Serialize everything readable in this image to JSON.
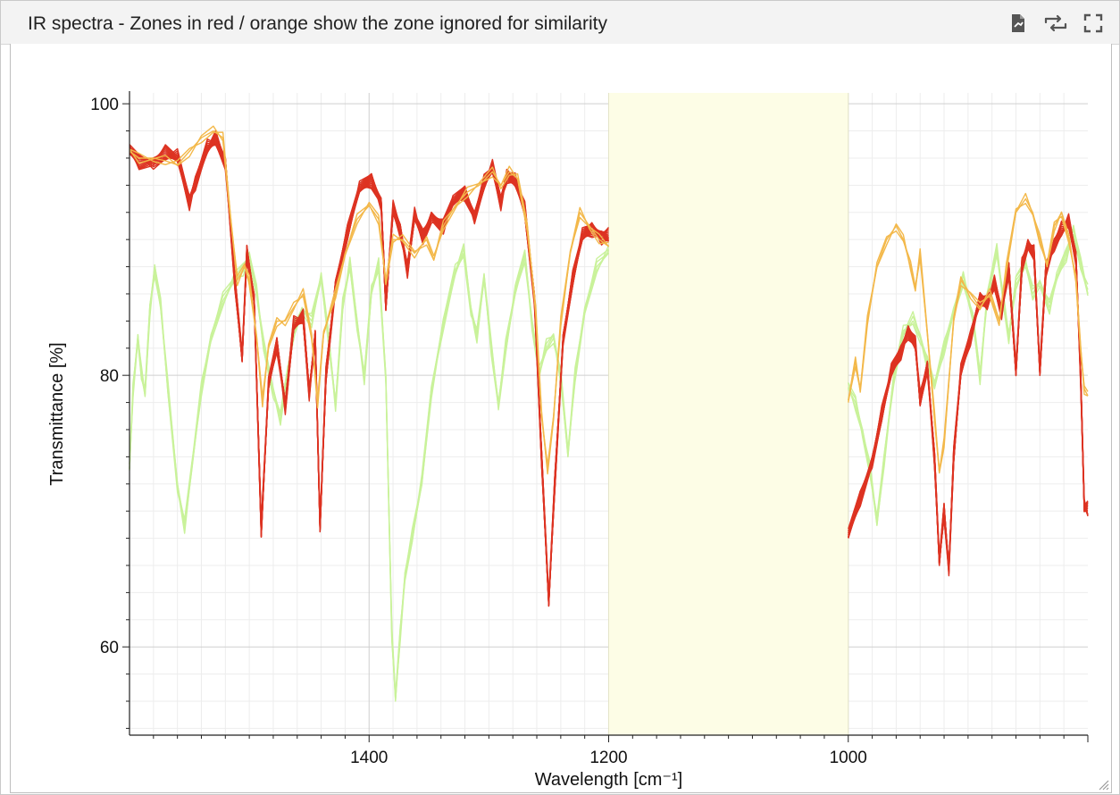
{
  "panel": {
    "title": "IR spectra - Zones in red / orange show the zone ignored for similarity",
    "buttons": [
      {
        "name": "export-icon"
      },
      {
        "name": "swap-icon"
      },
      {
        "name": "fullscreen-icon"
      }
    ]
  },
  "chart_data": {
    "type": "line",
    "title": "",
    "xlabel": "Wavelength [cm⁻¹]",
    "ylabel": "Transmittance [%]",
    "xlim": [
      1600,
      800
    ],
    "x_reversed": true,
    "ylim": [
      53.5,
      100.8
    ],
    "xticks": [
      1400,
      1200,
      1000
    ],
    "yticks": [
      100,
      80,
      60
    ],
    "grid": true,
    "ignored_zone": {
      "from": 1200,
      "to": 1000,
      "color": "#fdfde6"
    },
    "series": [
      {
        "color": "#dd3322",
        "count": 14,
        "spread": 0.9,
        "values": [
          [
            1600,
            96.3
          ],
          [
            1592,
            95.8
          ],
          [
            1580,
            96.0
          ],
          [
            1570,
            96.2
          ],
          [
            1560,
            95.8
          ],
          [
            1550,
            93.0
          ],
          [
            1545,
            94.5
          ],
          [
            1535,
            96.5
          ],
          [
            1528,
            97.2
          ],
          [
            1520,
            96.0
          ],
          [
            1512,
            87.0
          ],
          [
            1506,
            81.0
          ],
          [
            1502,
            89.0
          ],
          [
            1496,
            86.0
          ],
          [
            1490,
            68.5
          ],
          [
            1484,
            79.0
          ],
          [
            1477,
            82.5
          ],
          [
            1470,
            78.0
          ],
          [
            1463,
            83.5
          ],
          [
            1455,
            84.0
          ],
          [
            1450,
            79.0
          ],
          [
            1445,
            83.0
          ],
          [
            1441,
            68.5
          ],
          [
            1436,
            80.0
          ],
          [
            1428,
            87.0
          ],
          [
            1418,
            90.5
          ],
          [
            1408,
            93.5
          ],
          [
            1398,
            94.5
          ],
          [
            1390,
            93.0
          ],
          [
            1386,
            85.0
          ],
          [
            1380,
            92.0
          ],
          [
            1374,
            91.0
          ],
          [
            1368,
            88.0
          ],
          [
            1362,
            91.5
          ],
          [
            1355,
            90.0
          ],
          [
            1348,
            92.0
          ],
          [
            1338,
            91.0
          ],
          [
            1330,
            92.5
          ],
          [
            1320,
            93.5
          ],
          [
            1312,
            92.0
          ],
          [
            1304,
            94.0
          ],
          [
            1297,
            95.0
          ],
          [
            1290,
            93.0
          ],
          [
            1285,
            95.0
          ],
          [
            1278,
            94.0
          ],
          [
            1270,
            92.0
          ],
          [
            1262,
            86.0
          ],
          [
            1256,
            74.0
          ],
          [
            1250,
            63.0
          ],
          [
            1245,
            72.0
          ],
          [
            1238,
            83.0
          ],
          [
            1230,
            87.0
          ],
          [
            1222,
            90.0
          ],
          [
            1214,
            91.0
          ],
          [
            1206,
            90.5
          ],
          [
            1200,
            90.0
          ]
        ],
        "values_right": [
          [
            1000,
            68.0
          ],
          [
            990,
            71.0
          ],
          [
            980,
            74.0
          ],
          [
            972,
            77.0
          ],
          [
            964,
            80.0
          ],
          [
            956,
            82.0
          ],
          [
            950,
            83.5
          ],
          [
            944,
            82.0
          ],
          [
            940,
            78.0
          ],
          [
            934,
            81.0
          ],
          [
            928,
            74.0
          ],
          [
            924,
            66.0
          ],
          [
            920,
            70.0
          ],
          [
            916,
            66.0
          ],
          [
            912,
            74.0
          ],
          [
            906,
            80.0
          ],
          [
            898,
            83.0
          ],
          [
            890,
            86.0
          ],
          [
            884,
            85.0
          ],
          [
            878,
            86.5
          ],
          [
            872,
            85.0
          ],
          [
            866,
            88.0
          ],
          [
            860,
            80.0
          ],
          [
            855,
            88.0
          ],
          [
            850,
            90.0
          ],
          [
            845,
            89.0
          ],
          [
            840,
            80.0
          ],
          [
            835,
            88.0
          ],
          [
            828,
            90.0
          ],
          [
            822,
            90.5
          ],
          [
            816,
            91.0
          ],
          [
            810,
            89.0
          ],
          [
            806,
            80.0
          ],
          [
            803,
            70.0
          ],
          [
            800,
            70.0
          ]
        ]
      },
      {
        "color": "#f3b84a",
        "count": 3,
        "spread": 0.4,
        "values": [
          [
            1600,
            96.5
          ],
          [
            1592,
            96.0
          ],
          [
            1580,
            96.0
          ],
          [
            1570,
            95.8
          ],
          [
            1560,
            95.5
          ],
          [
            1550,
            96.5
          ],
          [
            1540,
            97.5
          ],
          [
            1530,
            98.0
          ],
          [
            1522,
            97.5
          ],
          [
            1516,
            92.0
          ],
          [
            1510,
            87.0
          ],
          [
            1504,
            88.0
          ],
          [
            1500,
            87.0
          ],
          [
            1494,
            83.0
          ],
          [
            1489,
            78.0
          ],
          [
            1484,
            82.0
          ],
          [
            1477,
            84.0
          ],
          [
            1470,
            84.0
          ],
          [
            1463,
            85.0
          ],
          [
            1455,
            86.0
          ],
          [
            1448,
            83.0
          ],
          [
            1443,
            78.0
          ],
          [
            1438,
            83.0
          ],
          [
            1428,
            86.0
          ],
          [
            1420,
            89.0
          ],
          [
            1410,
            91.5
          ],
          [
            1400,
            92.5
          ],
          [
            1392,
            91.5
          ],
          [
            1386,
            87.0
          ],
          [
            1380,
            90.0
          ],
          [
            1372,
            90.0
          ],
          [
            1362,
            89.0
          ],
          [
            1352,
            90.0
          ],
          [
            1346,
            88.5
          ],
          [
            1338,
            91.0
          ],
          [
            1328,
            92.5
          ],
          [
            1318,
            93.5
          ],
          [
            1308,
            94.0
          ],
          [
            1297,
            95.0
          ],
          [
            1290,
            94.0
          ],
          [
            1283,
            95.0
          ],
          [
            1276,
            94.5
          ],
          [
            1268,
            91.0
          ],
          [
            1261,
            85.0
          ],
          [
            1256,
            77.0
          ],
          [
            1251,
            73.0
          ],
          [
            1246,
            77.0
          ],
          [
            1240,
            84.0
          ],
          [
            1232,
            89.0
          ],
          [
            1224,
            92.0
          ],
          [
            1216,
            91.0
          ],
          [
            1208,
            90.0
          ],
          [
            1200,
            89.5
          ]
        ],
        "values_right": [
          [
            1000,
            78.0
          ],
          [
            994,
            81.0
          ],
          [
            990,
            79.0
          ],
          [
            984,
            84.0
          ],
          [
            976,
            88.0
          ],
          [
            968,
            90.0
          ],
          [
            960,
            91.0
          ],
          [
            954,
            90.0
          ],
          [
            948,
            88.0
          ],
          [
            944,
            86.5
          ],
          [
            940,
            89.0
          ],
          [
            934,
            83.0
          ],
          [
            928,
            77.0
          ],
          [
            924,
            73.0
          ],
          [
            920,
            75.0
          ],
          [
            912,
            84.0
          ],
          [
            906,
            87.0
          ],
          [
            898,
            86.0
          ],
          [
            890,
            85.0
          ],
          [
            882,
            86.0
          ],
          [
            874,
            84.0
          ],
          [
            868,
            88.0
          ],
          [
            860,
            92.0
          ],
          [
            852,
            93.0
          ],
          [
            846,
            92.0
          ],
          [
            840,
            90.0
          ],
          [
            834,
            88.0
          ],
          [
            828,
            91.0
          ],
          [
            822,
            92.0
          ],
          [
            816,
            90.0
          ],
          [
            810,
            87.0
          ],
          [
            806,
            82.0
          ],
          [
            803,
            79.0
          ],
          [
            800,
            78.5
          ]
        ]
      },
      {
        "color": "#c9f29a",
        "count": 5,
        "spread": 0.7,
        "values": [
          [
            1600,
            73.0
          ],
          [
            1597,
            79.0
          ],
          [
            1593,
            83.0
          ],
          [
            1590,
            80.0
          ],
          [
            1587,
            78.5
          ],
          [
            1583,
            85.0
          ],
          [
            1579,
            88.0
          ],
          [
            1574,
            85.0
          ],
          [
            1568,
            79.0
          ],
          [
            1560,
            72.0
          ],
          [
            1554,
            69.0
          ],
          [
            1548,
            73.0
          ],
          [
            1540,
            79.0
          ],
          [
            1532,
            83.0
          ],
          [
            1522,
            85.5
          ],
          [
            1512,
            87.0
          ],
          [
            1505,
            88.0
          ],
          [
            1500,
            89.0
          ],
          [
            1494,
            86.0
          ],
          [
            1488,
            82.0
          ],
          [
            1480,
            79.0
          ],
          [
            1474,
            77.0
          ],
          [
            1468,
            80.0
          ],
          [
            1462,
            83.5
          ],
          [
            1456,
            85.0
          ],
          [
            1448,
            84.0
          ],
          [
            1440,
            87.0
          ],
          [
            1434,
            83.0
          ],
          [
            1428,
            78.0
          ],
          [
            1422,
            85.0
          ],
          [
            1416,
            88.0
          ],
          [
            1410,
            84.0
          ],
          [
            1404,
            80.0
          ],
          [
            1398,
            86.0
          ],
          [
            1392,
            88.0
          ],
          [
            1386,
            80.0
          ],
          [
            1381,
            61.0
          ],
          [
            1378,
            56.0
          ],
          [
            1374,
            61.0
          ],
          [
            1370,
            65.5
          ],
          [
            1364,
            68.0
          ],
          [
            1356,
            72.0
          ],
          [
            1348,
            79.0
          ],
          [
            1338,
            84.0
          ],
          [
            1328,
            87.5
          ],
          [
            1321,
            89.0
          ],
          [
            1315,
            85.0
          ],
          [
            1310,
            83.0
          ],
          [
            1304,
            87.0
          ],
          [
            1298,
            82.0
          ],
          [
            1292,
            78.0
          ],
          [
            1286,
            82.0
          ],
          [
            1278,
            86.0
          ],
          [
            1270,
            89.0
          ],
          [
            1264,
            84.0
          ],
          [
            1258,
            80.0
          ],
          [
            1252,
            82.0
          ],
          [
            1246,
            83.0
          ],
          [
            1240,
            80.0
          ],
          [
            1234,
            74.0
          ],
          [
            1228,
            80.0
          ],
          [
            1220,
            85.0
          ],
          [
            1210,
            88.0
          ],
          [
            1200,
            89.0
          ]
        ],
        "values_right": [
          [
            1000,
            79.0
          ],
          [
            994,
            78.0
          ],
          [
            988,
            76.0
          ],
          [
            982,
            73.0
          ],
          [
            976,
            69.0
          ],
          [
            970,
            74.0
          ],
          [
            962,
            80.0
          ],
          [
            954,
            83.0
          ],
          [
            946,
            84.0
          ],
          [
            940,
            83.0
          ],
          [
            934,
            81.0
          ],
          [
            928,
            79.0
          ],
          [
            920,
            82.0
          ],
          [
            912,
            85.0
          ],
          [
            904,
            87.0
          ],
          [
            896,
            84.0
          ],
          [
            890,
            80.0
          ],
          [
            884,
            86.0
          ],
          [
            876,
            89.0
          ],
          [
            870,
            85.0
          ],
          [
            866,
            83.0
          ],
          [
            860,
            87.0
          ],
          [
            852,
            88.0
          ],
          [
            846,
            86.0
          ],
          [
            840,
            87.0
          ],
          [
            832,
            85.0
          ],
          [
            826,
            87.0
          ],
          [
            818,
            89.0
          ],
          [
            812,
            91.0
          ],
          [
            806,
            88.0
          ],
          [
            800,
            86.0
          ]
        ]
      }
    ]
  }
}
